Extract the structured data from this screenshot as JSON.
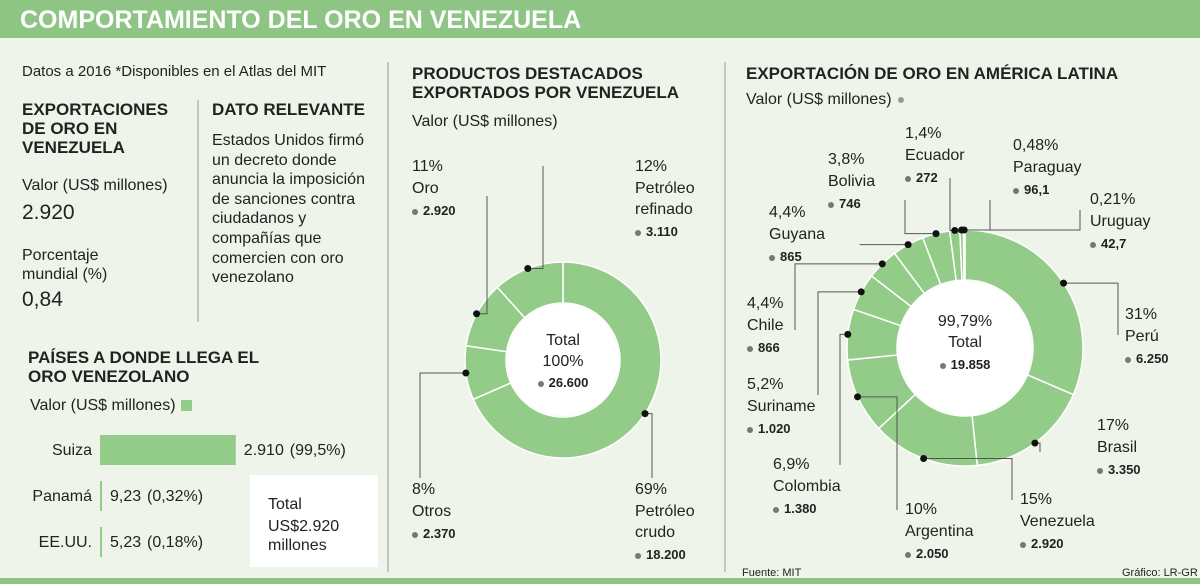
{
  "header": {
    "title": "COMPORTAMIENTO DEL ORO EN VENEZUELA"
  },
  "note": "Datos a 2016 *Disponibles en el Atlas del MIT",
  "exports": {
    "title": "EXPORTACIONES DE ORO EN VENEZUELA",
    "value_label": "Valor (US$ millones)",
    "value": "2.920",
    "share_label": "Porcentaje mundial (%)",
    "share": "0,84"
  },
  "highlight": {
    "title": "DATO RELEVANTE",
    "text": "Estados Unidos firmó un decreto donde anuncia la imposición de sanciones contra ciudadanos y compañías que comercien con oro venezolano"
  },
  "chart_data": [
    {
      "type": "bar",
      "orientation": "horizontal",
      "title": "PAÍSES A DONDE LLEGA EL ORO VENEZOLANO",
      "subtitle": "Valor (US$ millones)",
      "categories": [
        "Suiza",
        "Panamá",
        "EE.UU."
      ],
      "values": [
        2910,
        9.23,
        5.23
      ],
      "value_labels": [
        "2.910",
        "9,23",
        "5,23"
      ],
      "share_labels": [
        "(99,5%)",
        "(0,32%)",
        "(0,18%)"
      ],
      "xlim": [
        0,
        3000
      ],
      "color": "#93cc88",
      "total": {
        "label": "Total",
        "value_label": "US$2.920 millones"
      }
    },
    {
      "type": "donut",
      "title": "PRODUCTOS DESTACADOS EXPORTADOS POR VENEZUELA",
      "subtitle": "Valor (US$ millones)",
      "categories": [
        "Petróleo crudo",
        "Otros",
        "Oro",
        "Petróleo refinado"
      ],
      "values": [
        18200,
        2370,
        2920,
        3110
      ],
      "value_labels": [
        "18.200",
        "2.370",
        "2.920",
        "3.110"
      ],
      "share_labels": [
        "69%",
        "8%",
        "11%",
        "12%"
      ],
      "color": "#93cc88",
      "center": {
        "share": "100%",
        "label": "Total",
        "value_label": "26.600"
      }
    },
    {
      "type": "donut",
      "title": "EXPORTACIÓN DE ORO EN AMÉRICA LATINA",
      "subtitle": "Valor (US$ millones)",
      "categories": [
        "Perú",
        "Brasil",
        "Venezuela",
        "Argentina",
        "Colombia",
        "Suriname",
        "Chile",
        "Guyana",
        "Bolivia",
        "Ecuador",
        "Paraguay",
        "Uruguay"
      ],
      "values": [
        6250,
        3350,
        2920,
        2050,
        1380,
        1020,
        866,
        865,
        746,
        272,
        96.1,
        42.7
      ],
      "value_labels": [
        "6.250",
        "3.350",
        "2.920",
        "2.050",
        "1.380",
        "1.020",
        "866",
        "865",
        "746",
        "272",
        "96,1",
        "42,7"
      ],
      "share_labels": [
        "31%",
        "17%",
        "15%",
        "10%",
        "6,9%",
        "5,2%",
        "4,4%",
        "4,4%",
        "3,8%",
        "1,4%",
        "0,48%",
        "0,21%"
      ],
      "color": "#93cc88",
      "center": {
        "share": "99,79%",
        "label": "Total",
        "value_label": "19.858"
      }
    }
  ],
  "footer": {
    "source": "Fuente: MIT",
    "credit": "Gráfico: LR-GR"
  }
}
